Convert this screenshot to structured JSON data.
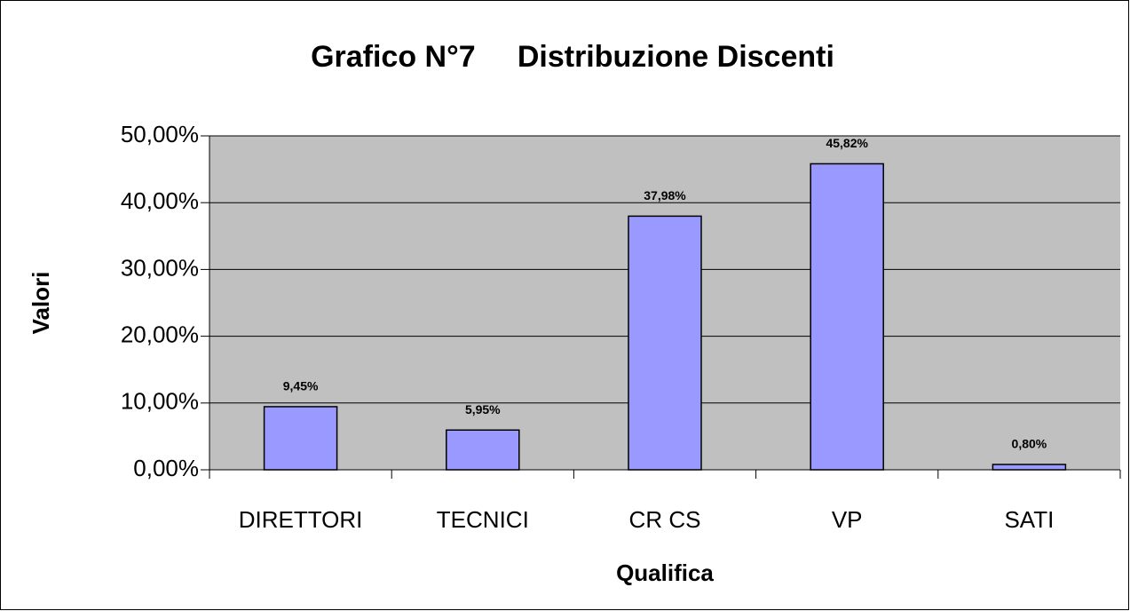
{
  "chart_data": {
    "type": "bar",
    "title": "Grafico N°7     Distribuzione Discenti",
    "x_label": "Qualifica",
    "y_label": "Valori",
    "categories": [
      "DIRETTORI",
      "TECNICI",
      "CR CS",
      "VP",
      "SATI"
    ],
    "values": [
      9.45,
      5.95,
      37.98,
      45.82,
      0.8
    ],
    "value_labels": [
      "9,45%",
      "5,95%",
      "37,98%",
      "45,82%",
      "0,80%"
    ],
    "color": "#9999ff",
    "ylim": [
      0,
      50
    ],
    "yticks": [
      {
        "value": 0,
        "label": "0,00%"
      },
      {
        "value": 10,
        "label": "10,00%"
      },
      {
        "value": 20,
        "label": "20,00%"
      },
      {
        "value": 30,
        "label": "30,00%"
      },
      {
        "value": 40,
        "label": "40,00%"
      },
      {
        "value": 50,
        "label": "50,00%"
      }
    ],
    "grid": true
  }
}
